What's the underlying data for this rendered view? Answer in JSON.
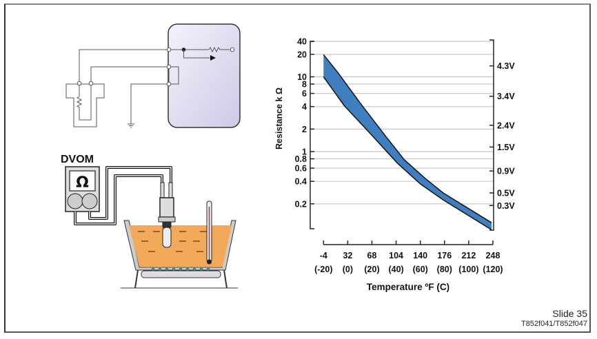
{
  "footer": {
    "slide": "Slide 35",
    "figure_ids": "T852f041/T852f047"
  },
  "diagram": {
    "meter_label": "DVOM",
    "meter_symbol": "Ω"
  },
  "colors": {
    "band": "#3f7fc0",
    "liquid": "#f2a95a",
    "ecu": "#e4e0f2"
  },
  "chart_data": {
    "type": "area",
    "title": "",
    "ylabel": "Resistance k Ω",
    "xlabel": "Temperature ºF (C)",
    "yscale": "log",
    "ylim": [
      0.09,
      40
    ],
    "xlim": [
      -4,
      248
    ],
    "grid": true,
    "y_ticks": [
      40,
      20,
      10,
      8,
      6,
      4,
      2,
      1,
      0.8,
      0.6,
      0.4,
      0.2
    ],
    "y_tick_labels": [
      "40",
      "20",
      "10",
      "8",
      "6",
      "4",
      "2",
      "1",
      "0.8",
      "0.6",
      "0.4",
      "0.2"
    ],
    "x_ticks": [
      -4,
      32,
      68,
      104,
      140,
      176,
      212,
      248
    ],
    "x_tick_labels_f": [
      "-4",
      "32",
      "68",
      "104",
      "140",
      "176",
      "212",
      "248"
    ],
    "x_tick_labels_c": [
      "(-20)",
      "(0)",
      "(20)",
      "(40)",
      "(60)",
      "(80)",
      "(100)",
      "(120)"
    ],
    "right_axis": {
      "labels": [
        "4.3V",
        "3.4V",
        "2.4V",
        "1.5V",
        "0.9V",
        "0.5V",
        "0.3V"
      ],
      "at_resistance": [
        14,
        5.5,
        2.25,
        1.15,
        0.55,
        0.28,
        0.19
      ]
    },
    "series": [
      {
        "name": "upper",
        "x": [
          -4,
          17,
          51,
          89,
          116,
          147,
          174,
          246
        ],
        "values": [
          19.8,
          11.5,
          4.4,
          1.58,
          0.78,
          0.44,
          0.28,
          0.112
        ]
      },
      {
        "name": "lower",
        "x": [
          -4,
          27,
          62,
          106,
          140,
          174,
          246
        ],
        "values": [
          10,
          4.1,
          1.89,
          0.7,
          0.37,
          0.226,
          0.09
        ]
      }
    ]
  }
}
